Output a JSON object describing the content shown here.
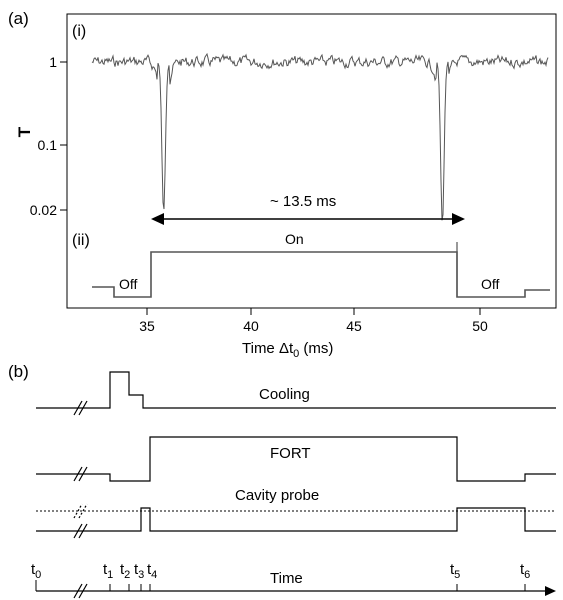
{
  "panel_a": {
    "label": "(a)",
    "sub_i": "(i)",
    "sub_ii": "(ii)",
    "annotation": "~ 13.5 ms",
    "state_off_1": "Off",
    "state_on": "On",
    "state_off_2": "Off"
  },
  "panel_b": {
    "label": "(b)",
    "cooling": "Cooling",
    "fort": "FORT",
    "cavity_probe": "Cavity probe",
    "time_label": "Time",
    "time_marks": [
      {
        "base": "t",
        "sub": "0"
      },
      {
        "base": "t",
        "sub": "1"
      },
      {
        "base": "t",
        "sub": "2"
      },
      {
        "base": "t",
        "sub": "3"
      },
      {
        "base": "t",
        "sub": "4"
      },
      {
        "base": "t",
        "sub": "5"
      },
      {
        "base": "t",
        "sub": "6"
      }
    ]
  },
  "chart_data": {
    "type": "line",
    "title": "",
    "xlabel": "Time  Δt",
    "xlabel_sub": "0",
    "xlabel_unit": " (ms)",
    "ylabel": "T",
    "xlim": [
      33,
      53.5
    ],
    "ylim_log": [
      0.01,
      3
    ],
    "y_scale": "log",
    "x_ticks": [
      35,
      40,
      45,
      50
    ],
    "x_tick_labels": [
      "35",
      "40",
      "45",
      "50"
    ],
    "y_ticks": [
      1,
      0.1,
      0.02
    ],
    "y_tick_labels": [
      "1",
      "0.1",
      "0.02"
    ],
    "series": [
      {
        "key": "transmission",
        "baseline": 1.0,
        "dips": [
          {
            "x": 35.8,
            "y": 0.015
          },
          {
            "x": 49.2,
            "y": 0.011
          }
        ]
      },
      {
        "key": "fort_state",
        "levels": [
          "Off",
          "On",
          "Off"
        ],
        "segments": [
          {
            "x0": 33.2,
            "x1": 34.0,
            "state": "mid"
          },
          {
            "x0": 34.0,
            "x1": 35.8,
            "state": "Off"
          },
          {
            "x0": 35.8,
            "x1": 49.2,
            "state": "On"
          },
          {
            "x0": 49.2,
            "x1": 52.0,
            "state": "Off"
          },
          {
            "x0": 52.0,
            "x1": 53.2,
            "state": "mid"
          }
        ]
      }
    ],
    "grid": false
  }
}
